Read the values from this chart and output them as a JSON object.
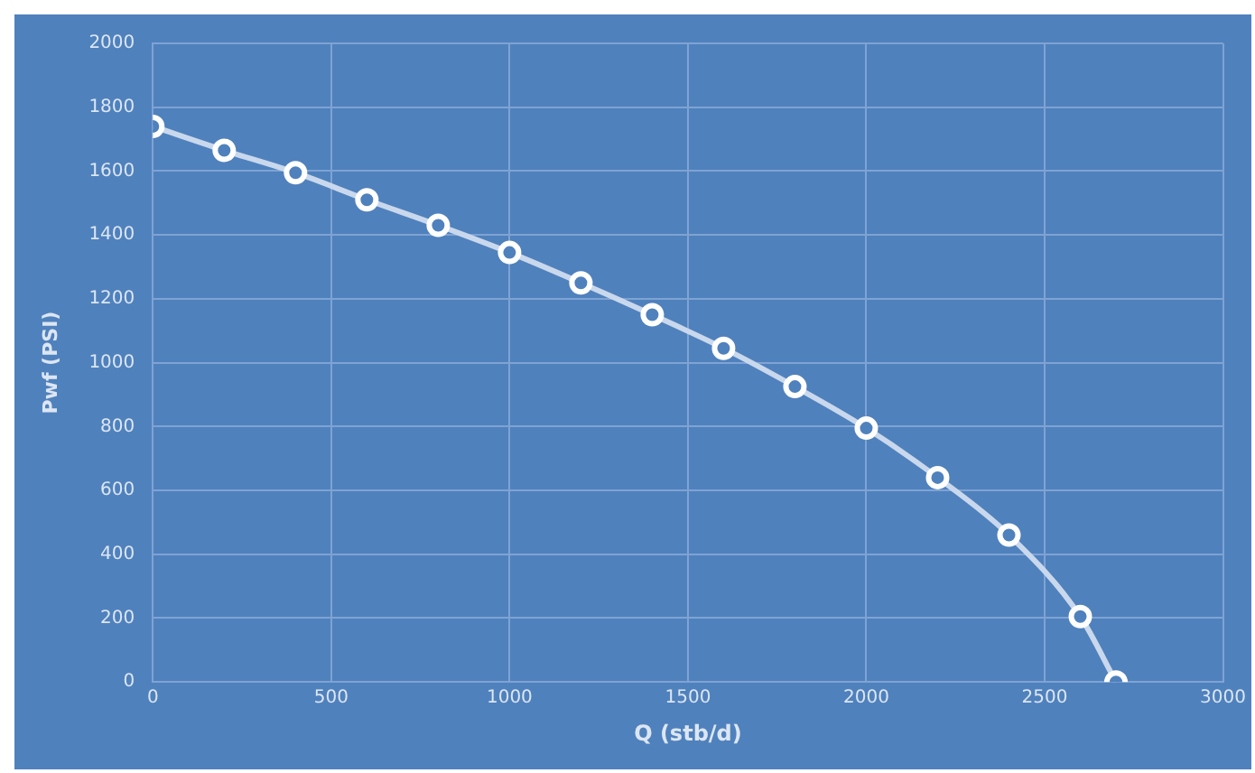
{
  "chart_data": {
    "type": "line",
    "xlabel": "Q (stb/d)",
    "ylabel": "Pwf (PSI)",
    "x": [
      0,
      200,
      400,
      600,
      800,
      1000,
      1200,
      1400,
      1600,
      1800,
      2000,
      2200,
      2400,
      2600,
      2700
    ],
    "series": [
      {
        "color": "#c9d8ec",
        "values": [
          1740,
          1665,
          1595,
          1510,
          1430,
          1345,
          1250,
          1150,
          1045,
          925,
          795,
          640,
          460,
          205,
          0
        ]
      }
    ],
    "xlim": [
      0,
      3000
    ],
    "xticks": [
      0,
      500,
      1000,
      1500,
      2000,
      2500,
      3000
    ],
    "ylim": [
      0,
      2000
    ],
    "yticks": [
      0,
      200,
      400,
      600,
      800,
      1000,
      1200,
      1400,
      1600,
      1800,
      2000
    ],
    "grid": true,
    "legend": false,
    "marker": "circle",
    "line_style": "solid"
  }
}
